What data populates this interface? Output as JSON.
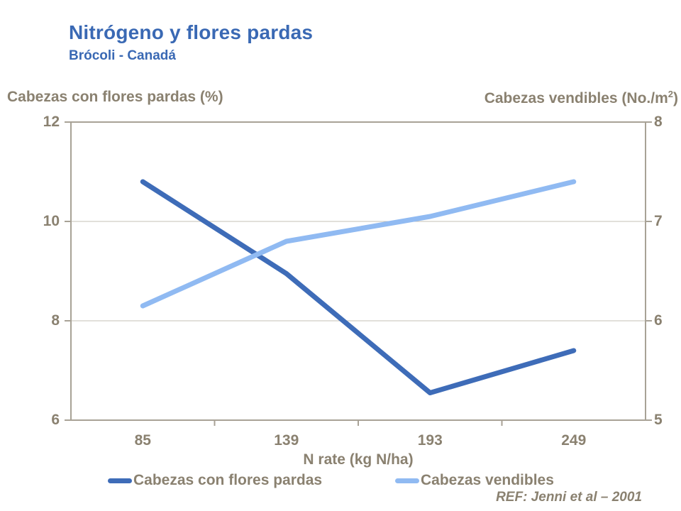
{
  "page": {
    "title": "Nitrógeno y flores pardas",
    "subtitle": "Brócoli - Canadá",
    "reference": "REF: Jenni et al – 2001"
  },
  "colors": {
    "title_blue": "#3a69b4",
    "label_taupe": "#8a8170",
    "axis_frame": "#a8a296",
    "gridline": "#c6c1b6",
    "series_dark_blue": "#3e6cb8",
    "series_light_blue": "#90baf2"
  },
  "chart_data": {
    "type": "line",
    "title": "Nitrógeno y flores pardas",
    "subtitle": "Brócoli - Canadá",
    "grid": "horizontal",
    "legend_position": "bottom",
    "x_axis": {
      "title": "N rate (kg N/ha)",
      "categories": [
        "85",
        "139",
        "193",
        "249"
      ]
    },
    "left_axis": {
      "title": "Cabezas con flores pardas (%)",
      "range": [
        6,
        12
      ],
      "ticks": [
        12,
        10,
        8,
        6
      ]
    },
    "right_axis": {
      "title_main": "Cabezas vendibles (No./m",
      "title_sup": "2",
      "title_close": ")",
      "range": [
        5,
        8
      ],
      "ticks": [
        8,
        7,
        6,
        5
      ]
    },
    "series": [
      {
        "name": "Cabezas con flores pardas",
        "axis": "left",
        "color": "#3e6cb8",
        "values": [
          10.8,
          8.95,
          6.55,
          7.4
        ]
      },
      {
        "name": "Cabezas vendibles",
        "axis": "right",
        "color": "#90baf2",
        "values": [
          6.15,
          6.8,
          7.05,
          7.4
        ]
      }
    ]
  }
}
